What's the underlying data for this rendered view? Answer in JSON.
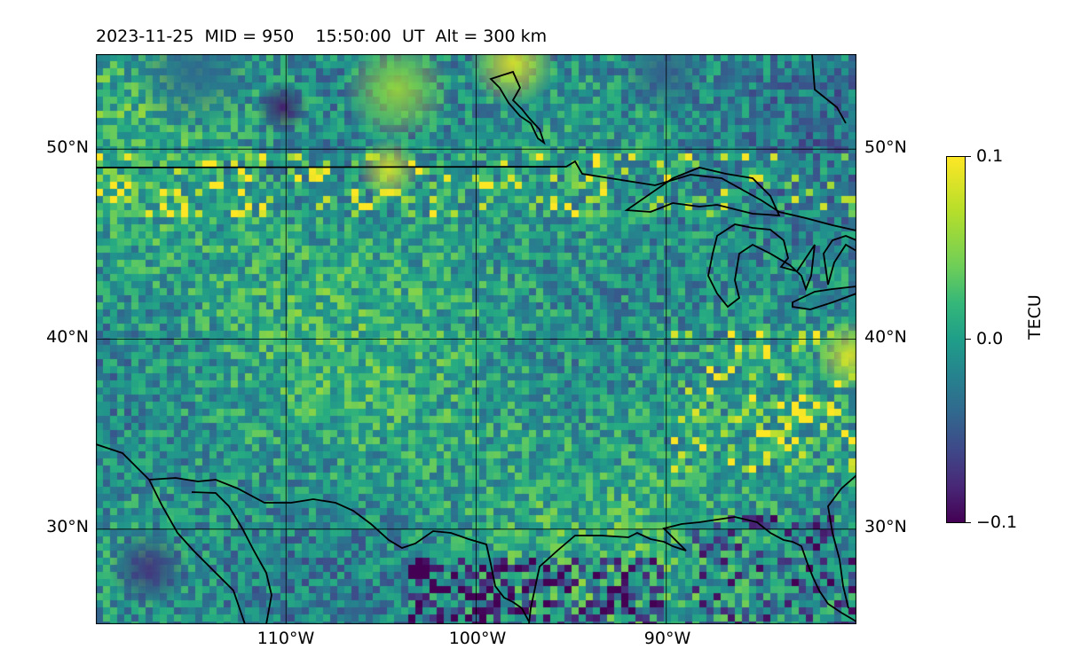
{
  "title": "2023-11-25  MID = 950    15:50:00  UT  Alt = 300 km",
  "lat_labels": [
    "50°N",
    "40°N",
    "30°N"
  ],
  "lon_labels": [
    "110°W",
    "100°W",
    "90°W"
  ],
  "colorbar": {
    "title": "TECU",
    "ticks": [
      "0.1",
      "0.0",
      "−0.1"
    ],
    "min": -0.1,
    "max": 0.1,
    "colormap": "viridis"
  },
  "map": {
    "lon_range": [
      -120,
      -80
    ],
    "lat_range": [
      25,
      55
    ],
    "gridlines_lon": [
      -110,
      -100,
      -90
    ],
    "gridlines_lat": [
      30,
      40,
      50
    ],
    "coastline_color": "#000000"
  }
}
